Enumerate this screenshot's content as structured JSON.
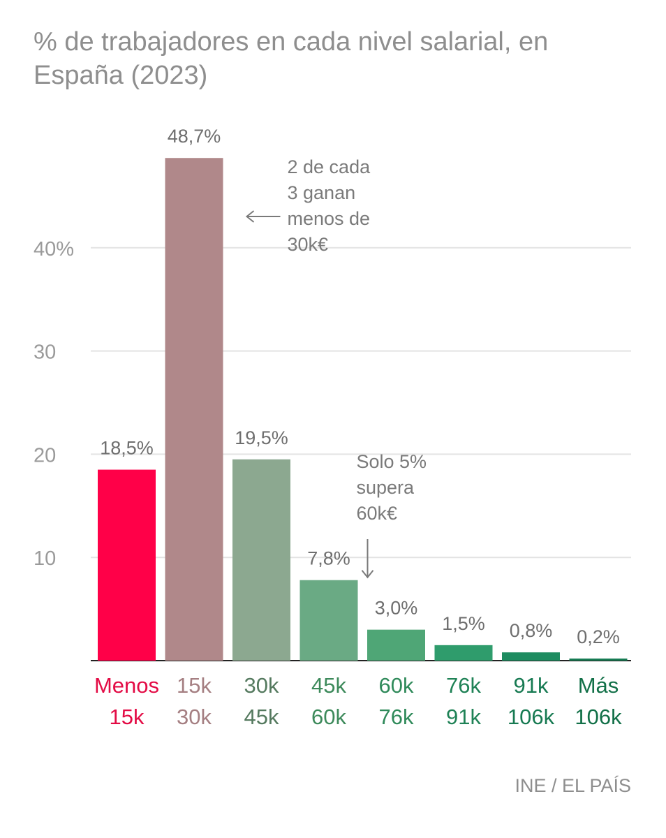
{
  "title": "% de trabajadores en cada nivel salarial, en España (2023)",
  "source": "INE / EL PAÍS",
  "chart_data": {
    "type": "bar",
    "categories": [
      [
        "Menos",
        "15k"
      ],
      [
        "15k",
        "30k"
      ],
      [
        "30k",
        "45k"
      ],
      [
        "45k",
        "60k"
      ],
      [
        "60k",
        "76k"
      ],
      [
        "76k",
        "91k"
      ],
      [
        "91k",
        "106k"
      ],
      [
        "Más",
        "106k"
      ]
    ],
    "values": [
      18.5,
      48.7,
      19.5,
      7.8,
      3.0,
      1.5,
      0.8,
      0.2
    ],
    "value_labels": [
      "18,5%",
      "48,7%",
      "19,5%",
      "7,8%",
      "3,0%",
      "1,5%",
      "0,8%",
      "0,2%"
    ],
    "bar_colors": [
      "#ff0048",
      "#b0888a",
      "#8ca890",
      "#6aaa84",
      "#4fa676",
      "#2f9c6c",
      "#1e8c60",
      "#157a52"
    ],
    "label_colors": [
      "#e30b45",
      "#a57f82",
      "#557a5f",
      "#3d8a5b",
      "#2f8a5a",
      "#1f8256",
      "#177a52",
      "#127048"
    ],
    "yticks": [
      {
        "value": 10,
        "label": "10"
      },
      {
        "value": 20,
        "label": "20"
      },
      {
        "value": 30,
        "label": "30"
      },
      {
        "value": 40,
        "label": "40%"
      }
    ],
    "ylim": [
      0,
      50
    ],
    "grid": true,
    "annotations": [
      {
        "lines": [
          "2 de cada",
          "3 ganan",
          "menos de",
          "30k€"
        ],
        "arrow": "left",
        "target_category": 1
      },
      {
        "lines": [
          "Solo 5%",
          "supera",
          "60k€"
        ],
        "arrow": "down",
        "target_category": 3
      }
    ]
  }
}
